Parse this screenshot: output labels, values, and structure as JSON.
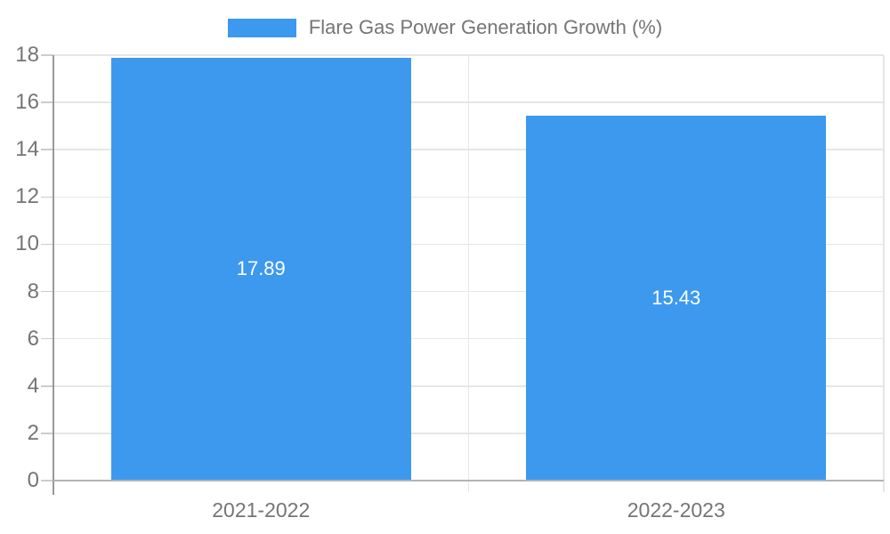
{
  "legend": {
    "label": "Flare Gas Power Generation Growth (%)"
  },
  "chart_data": {
    "type": "bar",
    "title": "",
    "xlabel": "",
    "ylabel": "",
    "categories": [
      "2021-2022",
      "2022-2023"
    ],
    "values": [
      17.89,
      15.43
    ],
    "value_labels": [
      "17.89",
      "15.43"
    ],
    "series": [
      {
        "name": "Flare Gas Power Generation Growth (%)",
        "values": [
          17.89,
          15.43
        ]
      }
    ],
    "ylim": [
      0,
      18
    ],
    "ytick_step": 2,
    "yticks": [
      0,
      2,
      4,
      6,
      8,
      10,
      12,
      14,
      16,
      18
    ],
    "grid": true,
    "legend_position": "top-center"
  },
  "colors": {
    "bar": "#3c99ee",
    "grid_line": "#e6e6e6",
    "x_axis_line": "#b3b3b3",
    "y_axis_line": "#999999",
    "tick": "#cccccc",
    "axis_text": "#757575",
    "value_text": "#ffffff",
    "background": "#ffffff"
  }
}
